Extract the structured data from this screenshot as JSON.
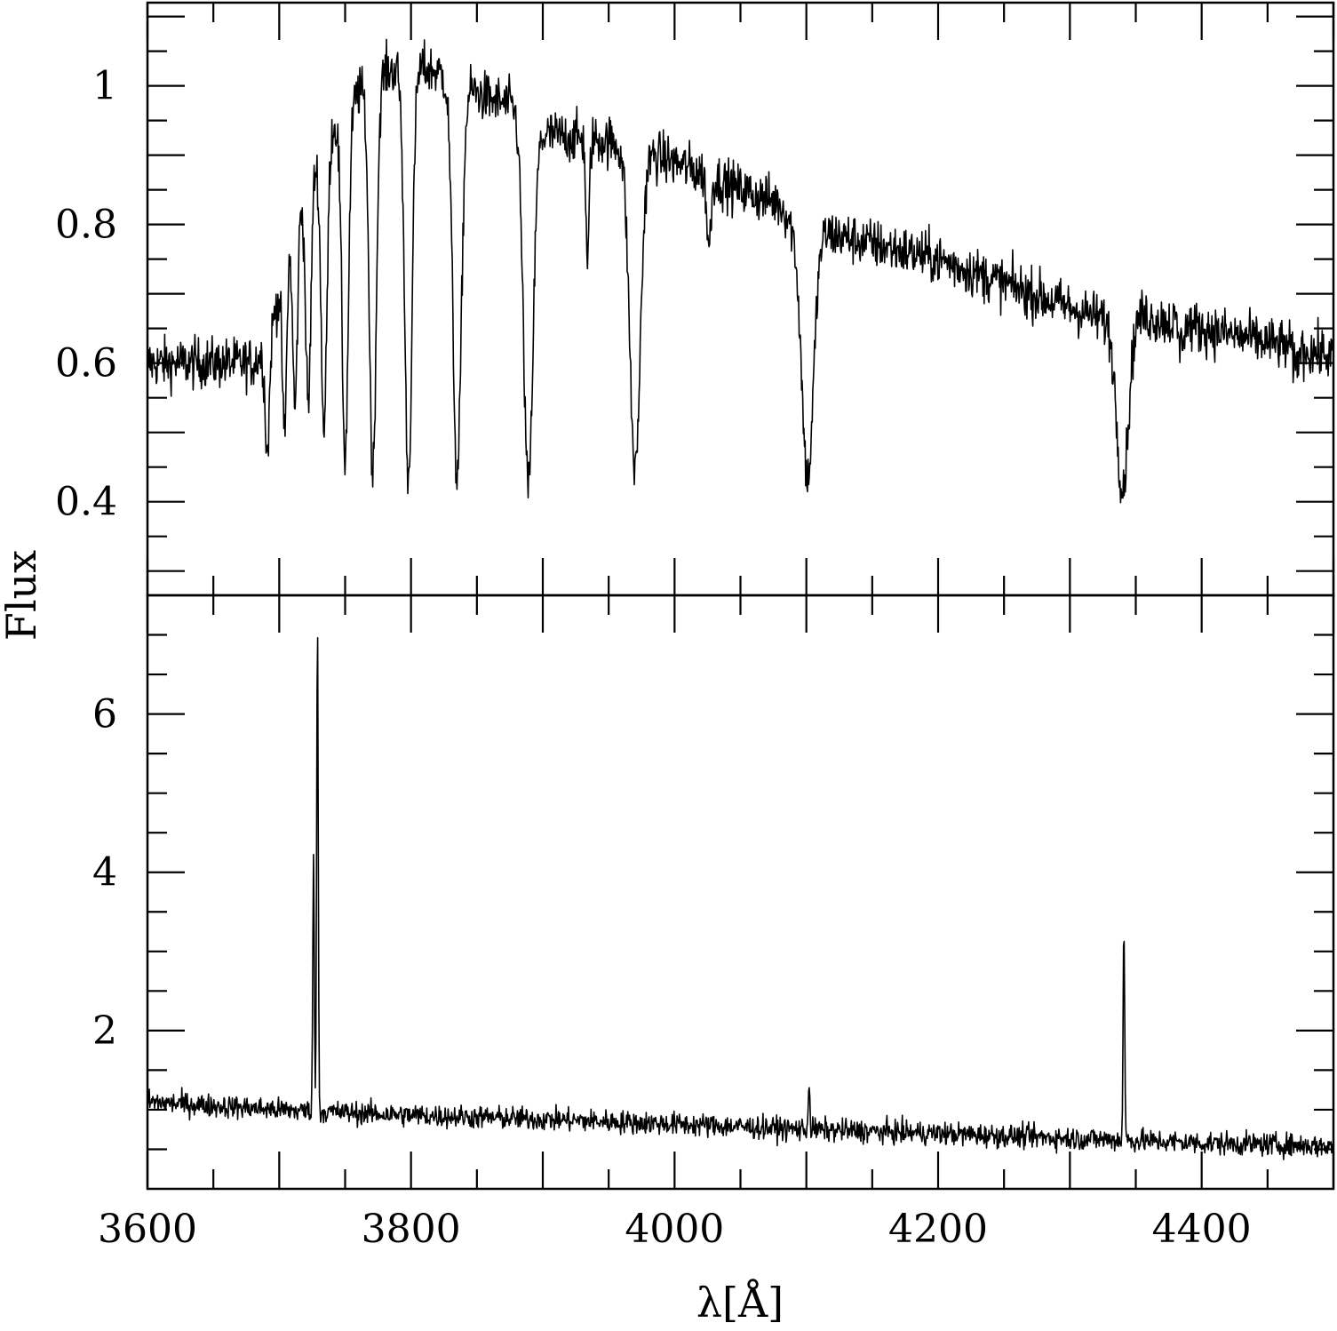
{
  "chart_data": [
    {
      "type": "line",
      "panel": "top",
      "title": "",
      "xlabel": "",
      "ylabel": "",
      "xlim": [
        3600,
        4500
      ],
      "ylim": [
        0.265,
        1.12
      ],
      "x_ticks": [],
      "y_ticks": [
        "0.4",
        "0.6",
        "0.8",
        "1"
      ],
      "y_tick_values": [
        0.4,
        0.6,
        0.8,
        1.0
      ],
      "grid": false,
      "continuum": {
        "x": [
          3600,
          3680,
          3690,
          3700,
          3710,
          3720,
          3740,
          3760,
          3780,
          3800,
          3820,
          3840,
          3860,
          3880,
          3900,
          3950,
          4000,
          4050,
          4080,
          4090,
          4100,
          4110,
          4200,
          4300,
          4330,
          4340,
          4350,
          4500
        ],
        "y": [
          0.6,
          0.6,
          0.62,
          0.7,
          0.8,
          0.86,
          0.94,
          0.99,
          1.02,
          1.03,
          1.02,
          1.0,
          0.98,
          0.97,
          0.93,
          0.92,
          0.89,
          0.85,
          0.83,
          0.8,
          0.79,
          0.79,
          0.75,
          0.68,
          0.66,
          0.66,
          0.67,
          0.61
        ]
      },
      "absorption_lines": [
        {
          "x": 3691,
          "depth": 0.25,
          "width": 1.6
        },
        {
          "x": 3704,
          "depth": 0.33,
          "width": 1.6
        },
        {
          "x": 3712,
          "depth": 0.34,
          "width": 1.8
        },
        {
          "x": 3722,
          "depth": 0.38,
          "width": 2.0
        },
        {
          "x": 3734,
          "depth": 0.45,
          "width": 2.2
        },
        {
          "x": 3750,
          "depth": 0.52,
          "width": 2.4
        },
        {
          "x": 3771,
          "depth": 0.56,
          "width": 2.6
        },
        {
          "x": 3798,
          "depth": 0.58,
          "width": 2.8
        },
        {
          "x": 3835,
          "depth": 0.57,
          "width": 3.2
        },
        {
          "x": 3889,
          "depth": 0.56,
          "width": 3.6
        },
        {
          "x": 3934,
          "depth": 0.2,
          "width": 1.2
        },
        {
          "x": 3970,
          "depth": 0.51,
          "width": 4.0
        },
        {
          "x": 4026,
          "depth": 0.12,
          "width": 1.5
        },
        {
          "x": 4101,
          "depth": 0.45,
          "width": 4.5
        },
        {
          "x": 4340,
          "depth": 0.36,
          "width": 4.5
        },
        {
          "x": 4384,
          "depth": 0.05,
          "width": 1.5
        },
        {
          "x": 4471,
          "depth": 0.05,
          "width": 1.5
        }
      ],
      "noise_amplitude": 0.025
    },
    {
      "type": "line",
      "panel": "bottom",
      "title": "",
      "xlabel": "λ[Å]",
      "ylabel": "",
      "xlim": [
        3600,
        4500
      ],
      "ylim": [
        0,
        7.5
      ],
      "x_ticks": [
        "3600",
        "3800",
        "4000",
        "4200",
        "4400"
      ],
      "x_tick_values": [
        3600,
        3800,
        4000,
        4200,
        4400
      ],
      "y_ticks": [
        "2",
        "4",
        "6"
      ],
      "y_tick_values": [
        2,
        4,
        6
      ],
      "grid": false,
      "continuum": {
        "x": [
          3600,
          3700,
          3800,
          3900,
          4000,
          4100,
          4200,
          4300,
          4400,
          4500
        ],
        "y": [
          1.1,
          1.0,
          0.93,
          0.88,
          0.82,
          0.75,
          0.7,
          0.64,
          0.58,
          0.54
        ]
      },
      "emission_lines": [
        {
          "x": 3726,
          "height": 3.1,
          "width": 0.6
        },
        {
          "x": 3729,
          "height": 6.1,
          "width": 0.6
        },
        {
          "x": 4102,
          "height": 0.6,
          "width": 0.6
        },
        {
          "x": 4341,
          "height": 2.7,
          "width": 0.6
        }
      ],
      "noise_amplitude": 0.1
    }
  ],
  "shared_ylabel": "Flux"
}
